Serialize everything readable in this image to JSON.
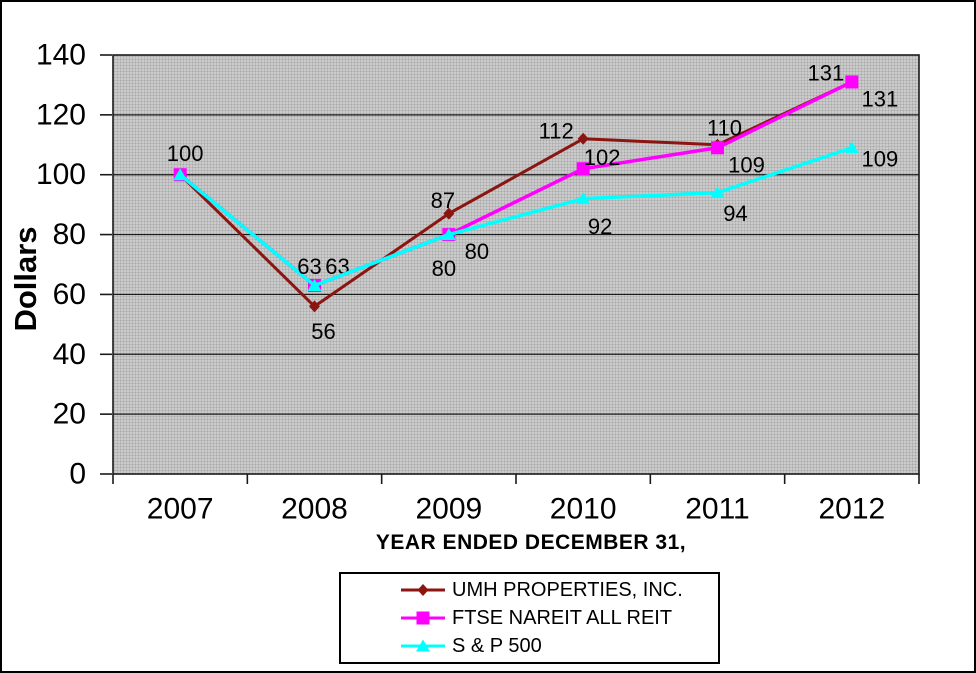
{
  "chart_data": {
    "type": "line",
    "xlabel": "YEAR ENDED DECEMBER 31,",
    "ylabel": "Dollars",
    "categories": [
      "2007",
      "2008",
      "2009",
      "2010",
      "2011",
      "2012"
    ],
    "ylim": [
      0,
      140
    ],
    "ytick_step": 20,
    "yticks": [
      "0",
      "20",
      "40",
      "60",
      "80",
      "100",
      "120",
      "140"
    ],
    "grid": true,
    "plot_background": "#cbcbcb",
    "gridline_color": "#1a1a1a",
    "legend_position": "bottom-center",
    "series": [
      {
        "name": "UMH PROPERTIES, INC.",
        "color": "#8b1510",
        "marker": "diamond",
        "values": [
          100,
          56,
          87,
          112,
          110,
          131
        ],
        "point_labels": [
          {
            "text": "100",
            "dx": 5,
            "dy": -21
          },
          {
            "text": "56",
            "dx": 9,
            "dy": 25
          },
          {
            "text": "87",
            "dx": -6,
            "dy": -13
          },
          {
            "text": "112",
            "dx": -27,
            "dy": -8
          },
          {
            "text": "110",
            "dx": 7,
            "dy": -17
          },
          {
            "text": "131",
            "dx": 28,
            "dy": 17
          }
        ]
      },
      {
        "name": "FTSE NAREIT ALL REIT",
        "color": "#ff00ff",
        "marker": "square",
        "values": [
          100,
          63,
          80,
          102,
          109,
          131
        ],
        "point_labels": [
          null,
          {
            "text": "63",
            "dx": 23,
            "dy": -19
          },
          {
            "text": "80",
            "dx": 28,
            "dy": 17
          },
          {
            "text": "102",
            "dx": 19,
            "dy": -11
          },
          {
            "text": "109",
            "dx": 29,
            "dy": 17
          },
          {
            "text": "131",
            "dx": -26,
            "dy": -9
          }
        ]
      },
      {
        "name": "S & P 500",
        "color": "#00ffff",
        "marker": "triangle",
        "values": [
          100,
          63,
          80,
          92,
          94,
          109
        ],
        "point_labels": [
          null,
          {
            "text": "63",
            "dx": -5,
            "dy": -19
          },
          {
            "text": "80",
            "dx": -5,
            "dy": 34
          },
          {
            "text": "92",
            "dx": 17,
            "dy": 28
          },
          {
            "text": "94",
            "dx": 18,
            "dy": 21
          },
          {
            "text": "109",
            "dx": 28,
            "dy": 11
          }
        ]
      }
    ]
  }
}
